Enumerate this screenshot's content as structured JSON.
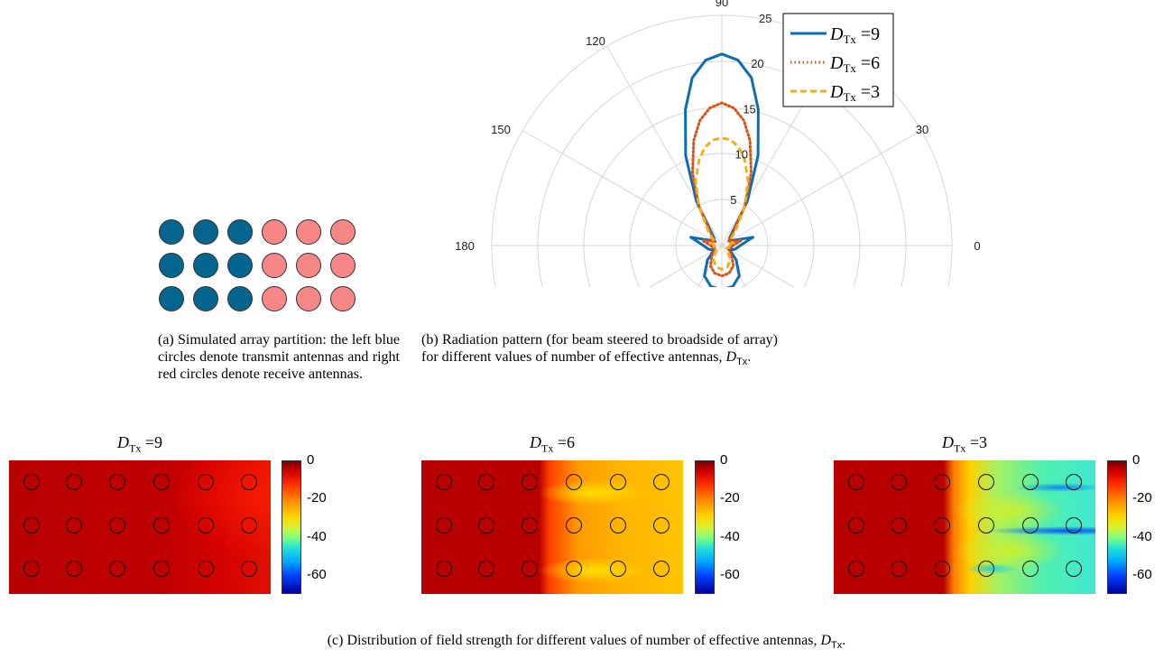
{
  "panel_a": {
    "rows": [
      [
        "tx",
        "tx",
        "tx",
        "rx",
        "rx",
        "rx"
      ],
      [
        "tx",
        "tx",
        "tx",
        "rx",
        "rx",
        "rx"
      ],
      [
        "tx",
        "tx",
        "tx",
        "rx",
        "rx",
        "rx"
      ]
    ],
    "colors": {
      "tx": "#04668f",
      "rx": "#f78686"
    },
    "caption": "(a) Simulated array partition: the left blue circles denote transmit antennas and right red circles denote receive antennas."
  },
  "panel_b": {
    "caption_prefix": "(b) Radiation pattern (for beam steered to broadside of array) for different values of number of effective antennas, ",
    "caption_var": "D",
    "caption_sub": "Tx",
    "caption_suffix": "."
  },
  "panel_c": {
    "caption_prefix": "(c) Distribution of field strength for different values of number of effective antennas, ",
    "caption_var": "D",
    "caption_sub": "Tx",
    "caption_suffix": ".",
    "heatmaps": [
      {
        "title_var": "D",
        "title_sub": "Tx",
        "title_eq": " =9"
      },
      {
        "title_var": "D",
        "title_sub": "Tx",
        "title_eq": " =6"
      },
      {
        "title_var": "D",
        "title_sub": "Tx",
        "title_eq": " =3"
      }
    ],
    "colorbar_ticks": [
      "0",
      "-20",
      "-40",
      "-60"
    ],
    "colorbar_range": [
      -70,
      0
    ]
  },
  "chart_data": {
    "type": "polar-line",
    "angle_ticks": [
      "0",
      "30",
      "90",
      "120",
      "150",
      "180"
    ],
    "radial_ticks": [
      "5",
      "10",
      "15",
      "20",
      "25"
    ],
    "rlim": [
      0,
      25
    ],
    "grid": true,
    "legend_position": "top-right",
    "series": [
      {
        "name": "D_Tx =9",
        "label_var": "D",
        "label_sub": "Tx",
        "label_eq": " =9",
        "color": "#0a6db5",
        "dash": "solid",
        "theta_deg": [
          0,
          15,
          30,
          45,
          60,
          68,
          75,
          80,
          85,
          90,
          95,
          100,
          105,
          112,
          120,
          135,
          150,
          165,
          180,
          195,
          210,
          225,
          240,
          255,
          270,
          285,
          300,
          315,
          330,
          345,
          360
        ],
        "r": [
          2,
          3.5,
          1.0,
          1.2,
          5.5,
          10.5,
          15.3,
          18.5,
          20.2,
          20.8,
          20.2,
          18.5,
          15.3,
          10.5,
          5.5,
          1.2,
          1.0,
          3.5,
          2,
          1.5,
          1.0,
          2.2,
          3.8,
          4.6,
          4.8,
          4.6,
          3.8,
          2.2,
          1.0,
          1.5,
          2
        ]
      },
      {
        "name": "D_Tx =6",
        "label_var": "D",
        "label_sub": "Tx",
        "label_eq": " =6",
        "color": "#d95319",
        "dash": "dotted",
        "theta_deg": [
          0,
          15,
          30,
          45,
          60,
          68,
          75,
          80,
          85,
          90,
          95,
          100,
          105,
          112,
          120,
          135,
          150,
          165,
          180,
          195,
          210,
          225,
          240,
          255,
          270,
          285,
          300,
          315,
          330,
          345,
          360
        ],
        "r": [
          1.2,
          2.2,
          0.8,
          1.5,
          5.0,
          8.5,
          11.8,
          13.8,
          15.0,
          15.5,
          15.0,
          13.8,
          11.8,
          8.5,
          5.0,
          1.5,
          0.8,
          2.2,
          1.2,
          1.0,
          0.8,
          1.5,
          2.5,
          3.1,
          3.3,
          3.1,
          2.5,
          1.5,
          0.8,
          1.0,
          1.2
        ]
      },
      {
        "name": "D_Tx =3",
        "label_var": "D",
        "label_sub": "Tx",
        "label_eq": " =3",
        "color": "#edb120",
        "dash": "dashed",
        "theta_deg": [
          0,
          15,
          30,
          45,
          60,
          68,
          75,
          80,
          85,
          90,
          95,
          100,
          105,
          112,
          120,
          135,
          150,
          165,
          180,
          195,
          210,
          225,
          240,
          255,
          270,
          285,
          300,
          315,
          330,
          345,
          360
        ],
        "r": [
          0.8,
          1.2,
          1.0,
          2.0,
          5.0,
          7.6,
          9.6,
          10.8,
          11.5,
          11.7,
          11.5,
          10.8,
          9.6,
          7.6,
          5.0,
          2.0,
          1.0,
          1.2,
          0.8,
          0.8,
          0.6,
          1.0,
          1.8,
          2.4,
          2.6,
          2.4,
          1.8,
          1.0,
          0.6,
          0.8,
          0.8
        ]
      }
    ]
  }
}
